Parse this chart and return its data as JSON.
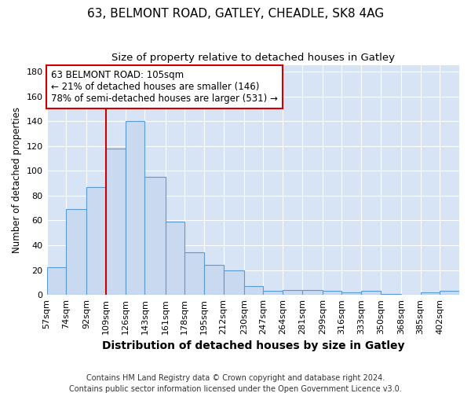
{
  "title": "63, BELMONT ROAD, GATLEY, CHEADLE, SK8 4AG",
  "subtitle": "Size of property relative to detached houses in Gatley",
  "xlabel": "Distribution of detached houses by size in Gatley",
  "ylabel": "Number of detached properties",
  "footer1": "Contains HM Land Registry data © Crown copyright and database right 2024.",
  "footer2": "Contains public sector information licensed under the Open Government Licence v3.0.",
  "bin_labels": [
    "57sqm",
    "74sqm",
    "92sqm",
    "109sqm",
    "126sqm",
    "143sqm",
    "161sqm",
    "178sqm",
    "195sqm",
    "212sqm",
    "230sqm",
    "247sqm",
    "264sqm",
    "281sqm",
    "299sqm",
    "316sqm",
    "333sqm",
    "350sqm",
    "368sqm",
    "385sqm",
    "402sqm"
  ],
  "bar_heights": [
    22,
    69,
    87,
    118,
    140,
    95,
    59,
    34,
    24,
    20,
    7,
    3,
    4,
    4,
    3,
    2,
    3,
    1,
    0,
    2,
    3
  ],
  "bar_color": "#c9d9f0",
  "bar_edge_color": "#5b9bd5",
  "vline_x": 109,
  "vline_color": "#cc0000",
  "annotation_line1": "63 BELMONT ROAD: 105sqm",
  "annotation_line2": "← 21% of detached houses are smaller (146)",
  "annotation_line3": "78% of semi-detached houses are larger (531) →",
  "annotation_box_color": "#cc0000",
  "annotation_bg": "#ffffff",
  "ylim": [
    0,
    185
  ],
  "yticks": [
    0,
    20,
    40,
    60,
    80,
    100,
    120,
    140,
    160,
    180
  ],
  "background_color": "#d6e4f5",
  "grid_color": "#ffffff",
  "title_fontsize": 11,
  "subtitle_fontsize": 9.5,
  "xlabel_fontsize": 10,
  "ylabel_fontsize": 8.5,
  "tick_fontsize": 8,
  "footer_fontsize": 7,
  "annotation_fontsize": 8.5
}
